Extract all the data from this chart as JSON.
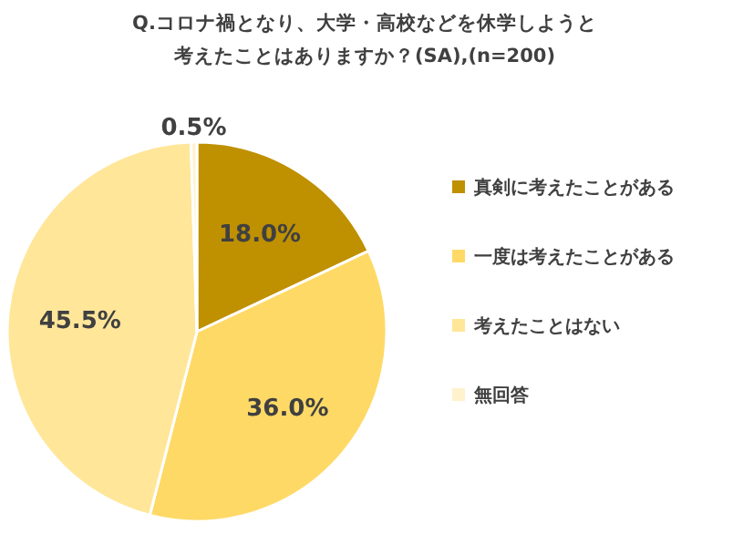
{
  "chart_data": {
    "type": "pie",
    "title": "Q.コロナ禍となり、大学・高校などを休学しようと",
    "subtitle": "考えたことはありますか？(SA),(n=200)",
    "categories": [
      "真剣に考えたことがある",
      "一度は考えたことがある",
      "考えたことはない",
      "無回答"
    ],
    "values": [
      18.0,
      36.0,
      45.5,
      0.5
    ],
    "colors": [
      "#bf9000",
      "#ffd966",
      "#ffe699",
      "#fff2cc"
    ],
    "value_labels": [
      "18.0%",
      "36.0%",
      "45.5%",
      "0.5%"
    ],
    "legend": "right"
  }
}
